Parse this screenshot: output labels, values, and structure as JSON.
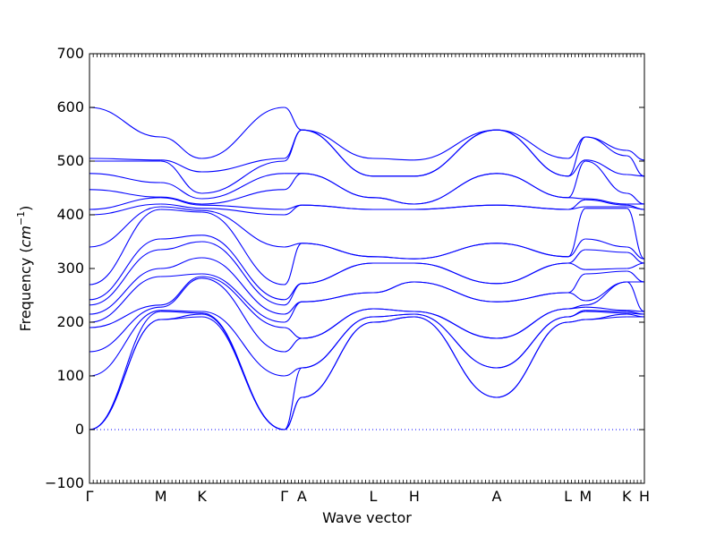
{
  "chart_data": {
    "type": "line",
    "title": "",
    "xlabel": "Wave vector",
    "ylabel": "Frequency (cm⁻¹)",
    "ylabel_parts": {
      "main": "Frequency (",
      "unit": "cm",
      "exp": "−1",
      "close": ")"
    },
    "ylim": [
      -100,
      700
    ],
    "yticks": [
      -100,
      0,
      100,
      200,
      300,
      400,
      500,
      600,
      700
    ],
    "ytick_labels": [
      "−100",
      "0",
      "100",
      "200",
      "300",
      "400",
      "500",
      "600",
      "700"
    ],
    "grid": false,
    "legend": "none",
    "zero_line": {
      "y": 0,
      "style": "dotted"
    },
    "line_color": "#0000ff",
    "high_symmetry_points": [
      {
        "label": "Γ",
        "x": 0
      },
      {
        "label": "M",
        "x": 0.577
      },
      {
        "label": "K",
        "x": 0.91
      },
      {
        "label": "Γ",
        "x": 1.577
      },
      {
        "label": "A",
        "x": 1.72
      },
      {
        "label": "L",
        "x": 2.297
      },
      {
        "label": "H",
        "x": 2.63
      },
      {
        "label": "A",
        "x": 3.297
      },
      {
        "label": "L",
        "x": 3.874
      },
      {
        "label": "M",
        "x": 4.017
      },
      {
        "label": "K",
        "x": 4.35
      },
      {
        "label": "H",
        "x": 4.493
      }
    ],
    "segment_endpoints": [
      {
        "from": "Γ",
        "to": "M",
        "start": [
          0,
          0,
          0,
          100,
          145,
          190,
          200,
          215,
          232,
          242,
          270,
          340,
          400,
          410,
          447,
          477,
          500,
          505,
          600
        ],
        "end": [
          205,
          205,
          220,
          222,
          228,
          232,
          285,
          300,
          335,
          355,
          410,
          415,
          420,
          432,
          433,
          460,
          500,
          502,
          545
        ]
      },
      {
        "from": "M",
        "to": "K",
        "start": [
          205,
          205,
          220,
          222,
          228,
          232,
          285,
          300,
          335,
          355,
          410,
          415,
          420,
          432,
          433,
          460,
          500,
          502,
          545
        ],
        "end": [
          210,
          215,
          217,
          220,
          282,
          285,
          290,
          320,
          350,
          362,
          405,
          408,
          412,
          418,
          420,
          430,
          440,
          480,
          505
        ]
      },
      {
        "from": "K",
        "to": "Γ",
        "start": [
          210,
          215,
          217,
          220,
          282,
          285,
          290,
          320,
          350,
          362,
          405,
          408,
          412,
          418,
          420,
          430,
          440,
          480,
          505
        ],
        "end": [
          0,
          0,
          0,
          100,
          145,
          190,
          200,
          215,
          232,
          242,
          270,
          340,
          400,
          410,
          447,
          477,
          500,
          505,
          600
        ]
      },
      {
        "from": "Γ",
        "to": "A",
        "start": [
          0,
          0,
          0,
          100,
          145,
          190,
          200,
          215,
          232,
          242,
          270,
          340,
          400,
          410,
          447,
          477,
          500,
          505,
          600
        ],
        "end": [
          60,
          60,
          115,
          115,
          170,
          170,
          238,
          238,
          272,
          272,
          347,
          347,
          418,
          418,
          477,
          477,
          558,
          558,
          558
        ]
      },
      {
        "from": "A",
        "to": "L",
        "start": [
          60,
          60,
          115,
          115,
          170,
          170,
          238,
          238,
          272,
          272,
          347,
          347,
          418,
          418,
          477,
          477,
          558,
          558,
          558
        ],
        "end": [
          200,
          200,
          210,
          210,
          225,
          225,
          255,
          255,
          310,
          310,
          322,
          322,
          410,
          410,
          432,
          432,
          472,
          472,
          505
        ]
      },
      {
        "from": "L",
        "to": "H",
        "start": [
          200,
          200,
          210,
          210,
          225,
          225,
          255,
          255,
          310,
          310,
          322,
          322,
          410,
          410,
          432,
          432,
          472,
          472,
          505
        ],
        "end": [
          210,
          210,
          215,
          215,
          220,
          220,
          275,
          275,
          310,
          310,
          318,
          318,
          410,
          410,
          420,
          420,
          472,
          472,
          502
        ]
      },
      {
        "from": "H",
        "to": "A",
        "start": [
          210,
          210,
          215,
          215,
          220,
          220,
          275,
          275,
          310,
          310,
          318,
          318,
          410,
          410,
          420,
          420,
          472,
          472,
          502
        ],
        "end": [
          60,
          60,
          115,
          115,
          170,
          170,
          238,
          238,
          272,
          272,
          347,
          347,
          418,
          418,
          477,
          477,
          558,
          558,
          558
        ]
      },
      {
        "from": "A",
        "to": "L",
        "start": [
          60,
          60,
          115,
          115,
          170,
          170,
          238,
          238,
          272,
          272,
          347,
          347,
          418,
          418,
          477,
          477,
          558,
          558,
          558
        ],
        "end": [
          200,
          200,
          210,
          210,
          225,
          225,
          255,
          255,
          310,
          310,
          322,
          322,
          410,
          410,
          432,
          432,
          472,
          472,
          505
        ]
      },
      {
        "from": "L",
        "to": "M",
        "start": [
          200,
          200,
          210,
          210,
          225,
          225,
          255,
          255,
          310,
          310,
          322,
          322,
          410,
          410,
          432,
          432,
          472,
          472,
          505
        ],
        "end": [
          205,
          205,
          220,
          222,
          228,
          232,
          240,
          290,
          298,
          335,
          355,
          412,
          415,
          428,
          430,
          500,
          502,
          545,
          545
        ]
      },
      {
        "from": "M",
        "to": "K",
        "start": [
          205,
          205,
          220,
          222,
          228,
          232,
          240,
          290,
          298,
          335,
          355,
          412,
          415,
          428,
          430,
          500,
          502,
          545,
          545
        ],
        "end": [
          210,
          215,
          217,
          220,
          222,
          275,
          275,
          295,
          300,
          330,
          340,
          412,
          415,
          418,
          420,
          440,
          475,
          510,
          520
        ]
      },
      {
        "from": "K",
        "to": "H",
        "start": [
          210,
          215,
          217,
          220,
          222,
          275,
          275,
          295,
          300,
          330,
          340,
          412,
          415,
          418,
          420,
          440,
          475,
          510,
          520
        ],
        "end": [
          210,
          210,
          215,
          215,
          220,
          220,
          275,
          275,
          310,
          310,
          318,
          318,
          410,
          410,
          420,
          420,
          472,
          472,
          502
        ]
      }
    ]
  }
}
